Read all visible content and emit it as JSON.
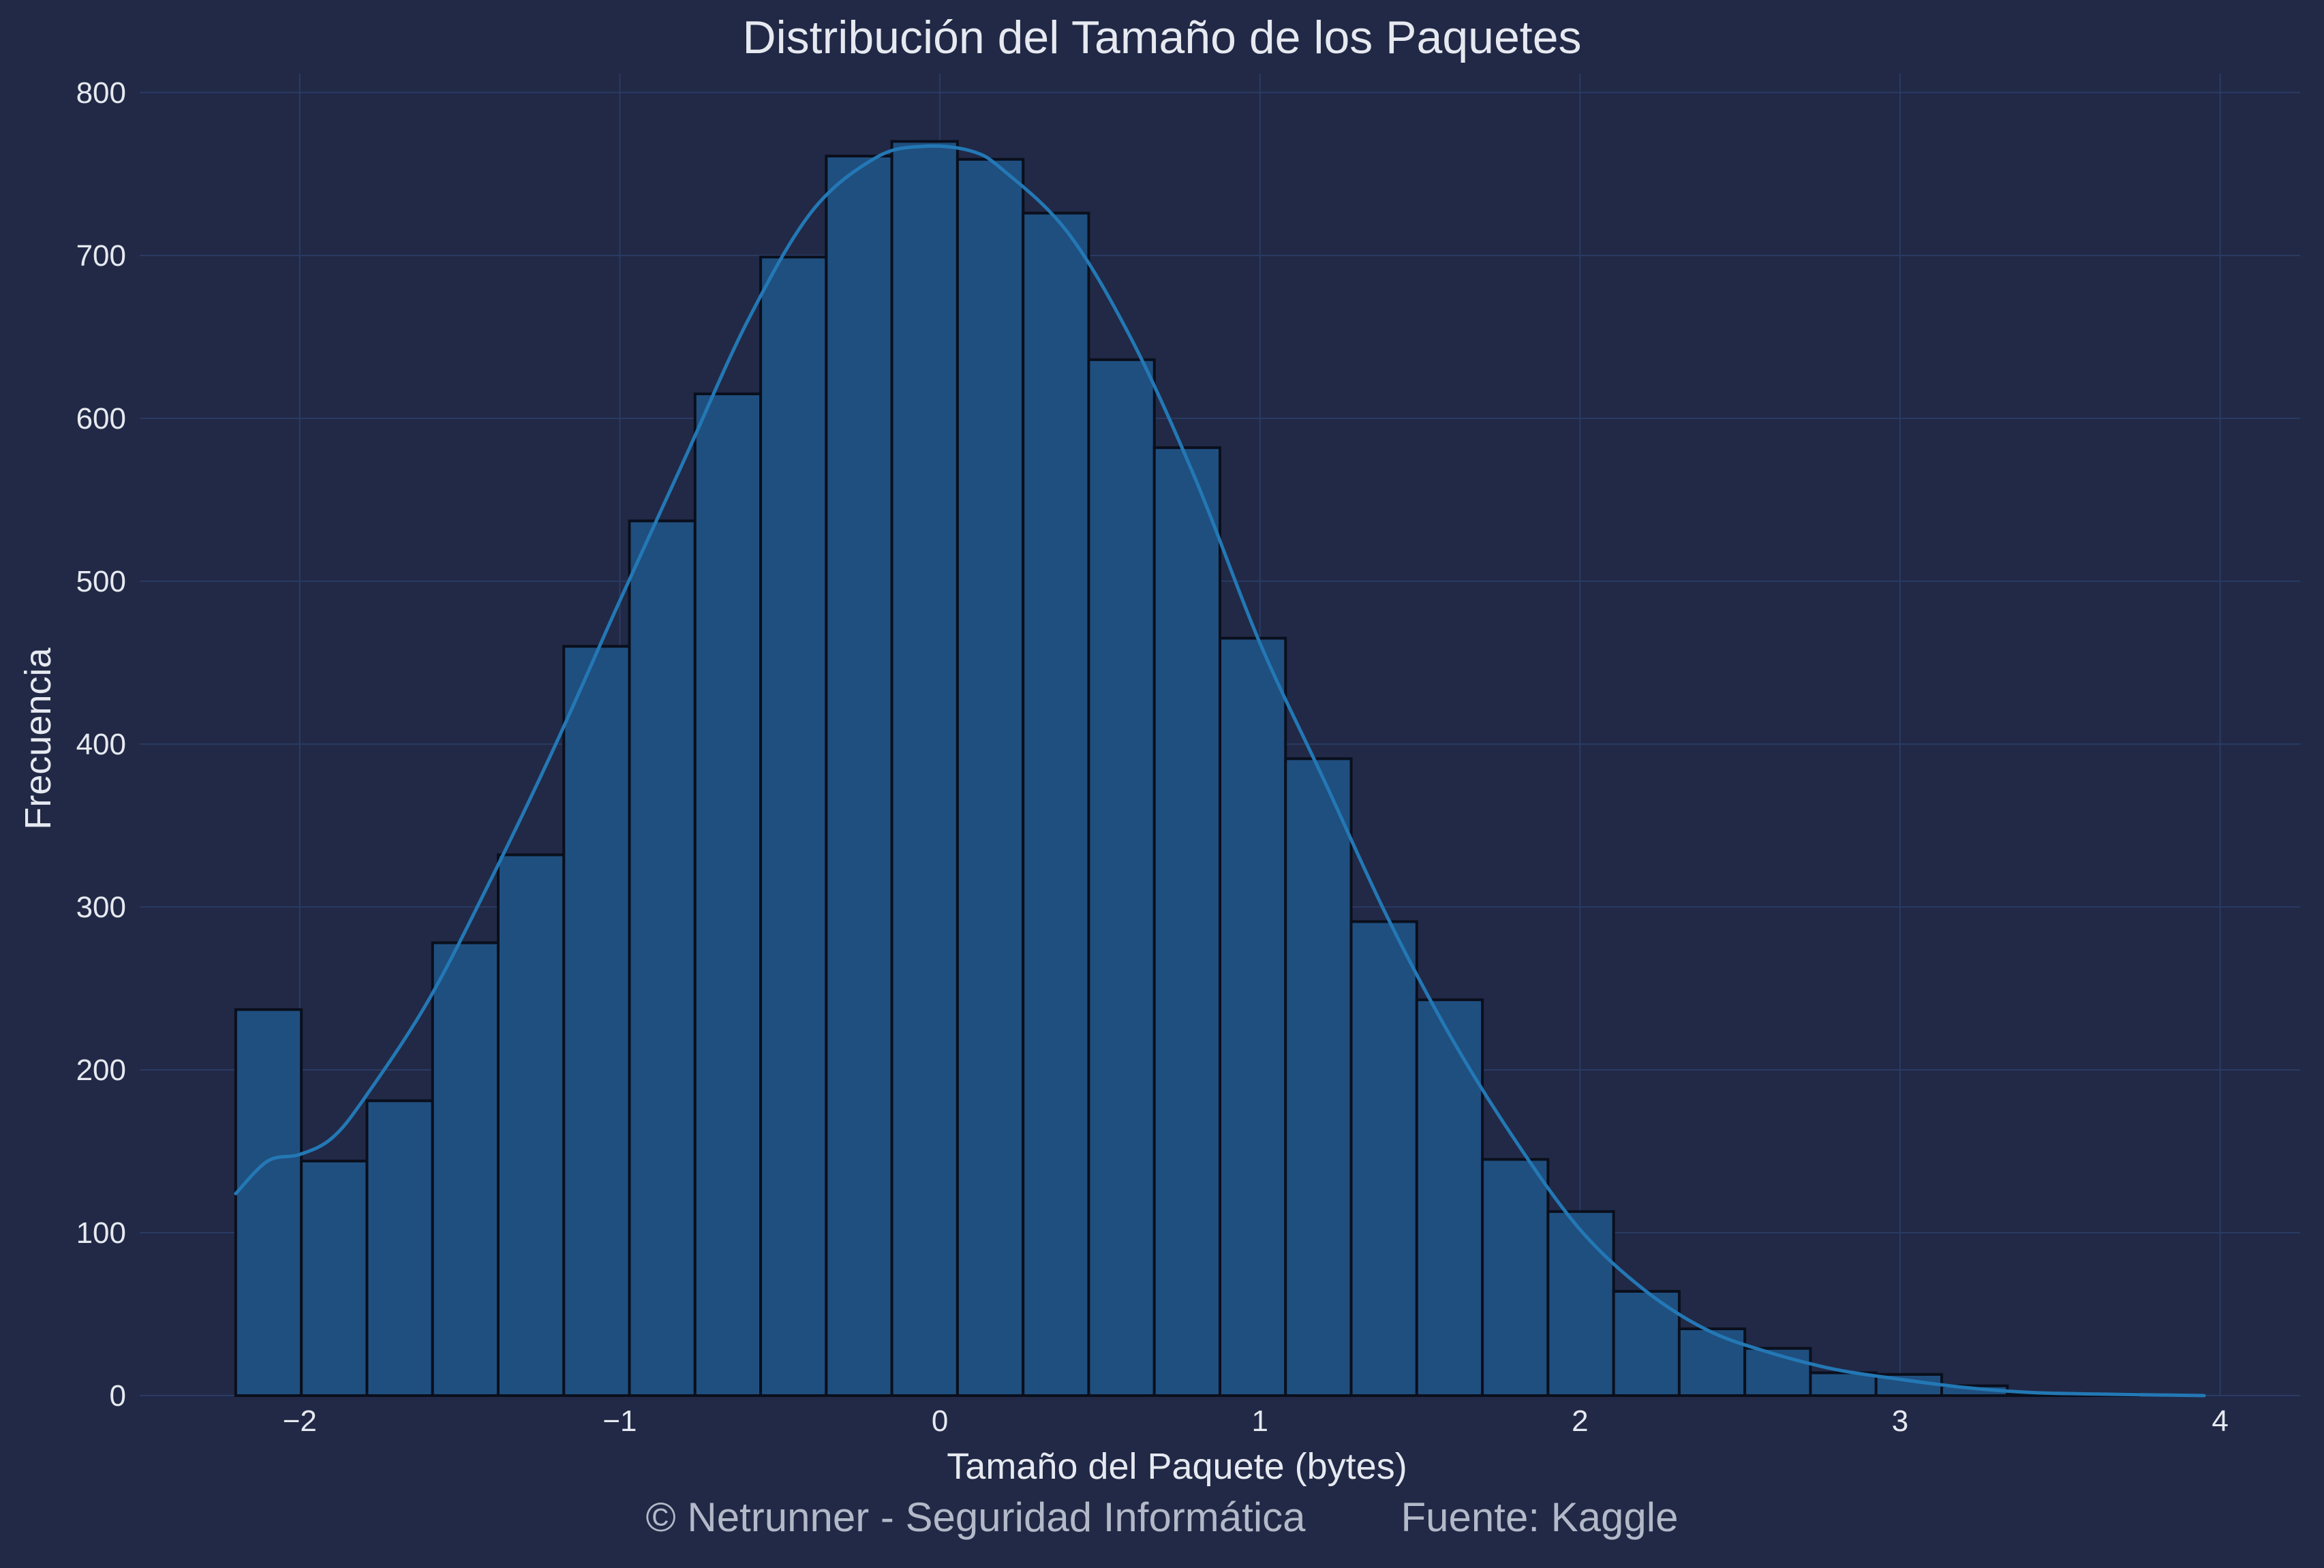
{
  "chart_data": {
    "type": "histogram",
    "title": "Distribución del Tamaño de los Paquetes",
    "xlabel": "Tamaño del Paquete (bytes)",
    "ylabel": "Frecuencia",
    "xlim": [
      -2.5,
      4.25
    ],
    "ylim": [
      0,
      820
    ],
    "x_ticks": [
      -2,
      -1,
      0,
      1,
      2,
      3,
      4
    ],
    "x_tick_labels": [
      "−2",
      "−1",
      "0",
      "1",
      "2",
      "3",
      "4"
    ],
    "y_ticks": [
      0,
      100,
      200,
      300,
      400,
      500,
      600,
      700,
      800
    ],
    "y_tick_labels": [
      "0",
      "100",
      "200",
      "300",
      "400",
      "500",
      "600",
      "700",
      "800"
    ],
    "grid": true,
    "bins": {
      "x_start": -2.2,
      "bin_width": 0.205,
      "counts": [
        237,
        144,
        181,
        278,
        332,
        460,
        537,
        615,
        699,
        761,
        770,
        759,
        726,
        636,
        582,
        465,
        391,
        291,
        243,
        145,
        113,
        64,
        41,
        29,
        14,
        13,
        6,
        1,
        1,
        0
      ]
    },
    "kde": {
      "x": [
        -2.2,
        -2.1,
        -2.0,
        -1.9,
        -1.8,
        -1.6,
        -1.4,
        -1.2,
        -1.0,
        -0.8,
        -0.6,
        -0.4,
        -0.2,
        -0.05,
        0.1,
        0.2,
        0.4,
        0.6,
        0.8,
        1.0,
        1.2,
        1.4,
        1.6,
        1.8,
        2.0,
        2.2,
        2.4,
        2.6,
        2.8,
        3.0,
        3.2,
        3.4,
        3.6,
        3.95
      ],
      "y": [
        124,
        144,
        148,
        158,
        182,
        242,
        318,
        400,
        488,
        574,
        660,
        727,
        760,
        767,
        764,
        752,
        714,
        648,
        562,
        462,
        378,
        293,
        219,
        156,
        102,
        65,
        40,
        26,
        16,
        10,
        5,
        2,
        1,
        0
      ]
    },
    "colors": {
      "background": "#212946",
      "bar_fill": "#1f4f7f",
      "bar_edge": "#0a0f1c",
      "kde_line": "#2378b5",
      "grid": "#2a3b64",
      "text": "#e6e9f0"
    }
  },
  "footer": {
    "credit": "© Netrunner - Seguridad Informática",
    "source": "Fuente: Kaggle"
  }
}
